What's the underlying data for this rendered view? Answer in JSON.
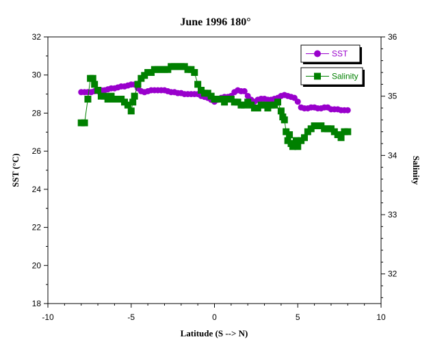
{
  "chart_data": {
    "type": "line",
    "title": "June 1996 180°",
    "xlabel": "Latitude (S --> N)",
    "ylabel": "SST (°C)",
    "y2label": "Salinity",
    "xlim": [
      -10,
      10
    ],
    "ylim": [
      18,
      32
    ],
    "y2lim": [
      31.5,
      36
    ],
    "x_ticks": [
      -10,
      -5,
      0,
      5,
      10
    ],
    "y_ticks": [
      18,
      20,
      22,
      24,
      26,
      28,
      30,
      32
    ],
    "y2_ticks": [
      32,
      33,
      34,
      35,
      36
    ],
    "grid": false,
    "legend_position": "top-right",
    "series": [
      {
        "name": "SST",
        "axis": "left",
        "color": "#9900cc",
        "marker": "circle",
        "x": [
          -8.0,
          -7.8,
          -7.6,
          -7.4,
          -7.2,
          -7.0,
          -6.8,
          -6.6,
          -6.4,
          -6.2,
          -6.0,
          -5.8,
          -5.6,
          -5.4,
          -5.2,
          -5.0,
          -4.8,
          -4.6,
          -4.4,
          -4.2,
          -4.0,
          -3.8,
          -3.6,
          -3.4,
          -3.2,
          -3.0,
          -2.8,
          -2.6,
          -2.4,
          -2.2,
          -2.0,
          -1.8,
          -1.6,
          -1.4,
          -1.2,
          -1.0,
          -0.8,
          -0.6,
          -0.4,
          -0.2,
          0.0,
          0.2,
          0.4,
          0.6,
          0.8,
          1.0,
          1.2,
          1.4,
          1.6,
          1.8,
          2.0,
          2.2,
          2.4,
          2.6,
          2.8,
          3.0,
          3.2,
          3.4,
          3.6,
          3.8,
          4.0,
          4.2,
          4.4,
          4.6,
          4.8,
          5.0,
          5.2,
          5.4,
          5.6,
          5.8,
          6.0,
          6.2,
          6.4,
          6.6,
          6.8,
          7.0,
          7.2,
          7.4,
          7.6,
          7.8,
          8.0
        ],
        "values": [
          29.1,
          29.1,
          29.1,
          29.1,
          29.15,
          29.15,
          29.2,
          29.2,
          29.25,
          29.3,
          29.3,
          29.35,
          29.4,
          29.4,
          29.45,
          29.5,
          29.5,
          29.3,
          29.15,
          29.1,
          29.15,
          29.2,
          29.2,
          29.2,
          29.2,
          29.2,
          29.15,
          29.1,
          29.1,
          29.05,
          29.05,
          29.0,
          29.0,
          29.0,
          29.0,
          29.0,
          28.9,
          28.85,
          28.8,
          28.7,
          28.6,
          28.7,
          28.8,
          28.85,
          28.85,
          28.9,
          29.1,
          29.2,
          29.15,
          29.15,
          28.9,
          28.7,
          28.6,
          28.7,
          28.75,
          28.75,
          28.7,
          28.7,
          28.75,
          28.8,
          28.9,
          28.95,
          28.9,
          28.85,
          28.8,
          28.6,
          28.3,
          28.25,
          28.25,
          28.3,
          28.3,
          28.25,
          28.25,
          28.3,
          28.3,
          28.2,
          28.2,
          28.2,
          28.15,
          28.15,
          28.15
        ]
      },
      {
        "name": "Salinity",
        "axis": "right",
        "color": "#008000",
        "marker": "square",
        "x": [
          -8.0,
          -7.8,
          -7.6,
          -7.45,
          -7.3,
          -7.2,
          -7.0,
          -6.8,
          -6.6,
          -6.4,
          -6.2,
          -6.0,
          -5.8,
          -5.6,
          -5.4,
          -5.2,
          -5.0,
          -4.9,
          -4.8,
          -4.6,
          -4.4,
          -4.2,
          -4.0,
          -3.8,
          -3.6,
          -3.4,
          -3.2,
          -3.0,
          -2.8,
          -2.6,
          -2.4,
          -2.2,
          -2.0,
          -1.8,
          -1.6,
          -1.4,
          -1.2,
          -1.0,
          -0.8,
          -0.6,
          -0.4,
          -0.2,
          0.0,
          0.2,
          0.4,
          0.6,
          0.8,
          1.0,
          1.2,
          1.4,
          1.6,
          1.8,
          2.0,
          2.2,
          2.4,
          2.6,
          2.8,
          3.0,
          3.2,
          3.4,
          3.6,
          3.8,
          4.0,
          4.1,
          4.2,
          4.3,
          4.4,
          4.5,
          4.6,
          4.7,
          4.8,
          4.9,
          5.0,
          5.2,
          5.4,
          5.6,
          5.8,
          6.0,
          6.2,
          6.4,
          6.6,
          6.8,
          7.0,
          7.2,
          7.4,
          7.6,
          7.8,
          8.0
        ],
        "values": [
          34.55,
          34.55,
          34.95,
          35.3,
          35.3,
          35.2,
          35.1,
          35.0,
          35.0,
          34.95,
          35.0,
          34.95,
          34.95,
          34.95,
          34.9,
          34.85,
          34.75,
          34.9,
          35.0,
          35.2,
          35.3,
          35.35,
          35.4,
          35.4,
          35.45,
          35.45,
          35.45,
          35.45,
          35.45,
          35.5,
          35.5,
          35.5,
          35.5,
          35.5,
          35.45,
          35.45,
          35.4,
          35.2,
          35.1,
          35.05,
          35.05,
          35.0,
          34.95,
          34.95,
          34.95,
          34.9,
          34.95,
          34.95,
          34.9,
          34.9,
          34.85,
          34.85,
          34.9,
          34.85,
          34.8,
          34.8,
          34.85,
          34.85,
          34.8,
          34.85,
          34.85,
          34.9,
          34.75,
          34.65,
          34.6,
          34.4,
          34.25,
          34.35,
          34.2,
          34.15,
          34.2,
          34.25,
          34.15,
          34.25,
          34.3,
          34.4,
          34.45,
          34.5,
          34.5,
          34.5,
          34.45,
          34.45,
          34.45,
          34.4,
          34.35,
          34.3,
          34.4,
          34.4
        ]
      }
    ]
  }
}
